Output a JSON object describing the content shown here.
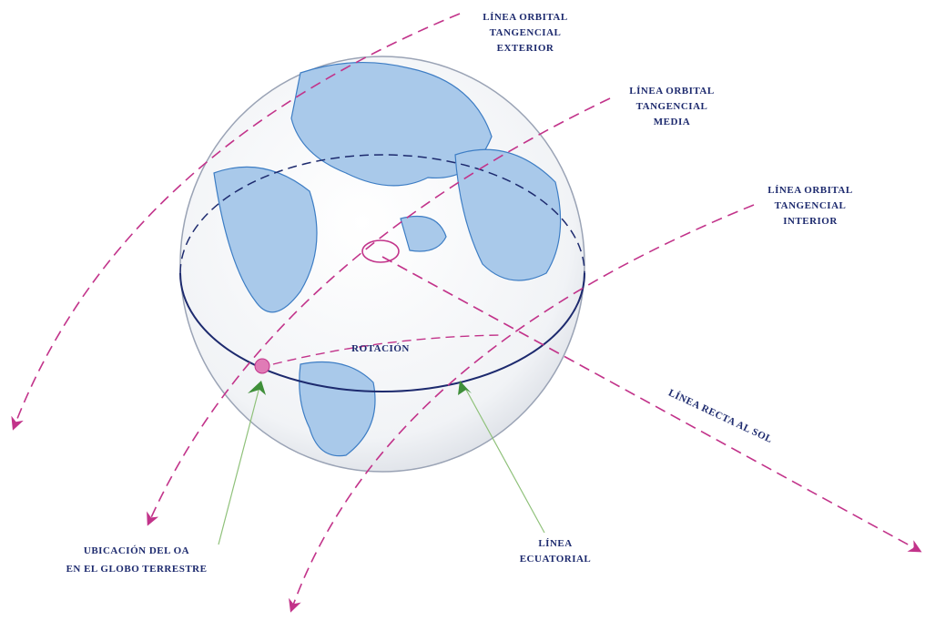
{
  "labels": {
    "exterior": [
      "LÍNEA ORBITAL",
      "TANGENCIAL",
      "EXTERIOR"
    ],
    "media": [
      "LÍNEA ORBITAL",
      "TANGENCIAL",
      "MEDIA"
    ],
    "interior": [
      "LÍNEA ORBITAL",
      "TANGENCIAL",
      "INTERIOR"
    ],
    "rotacion": "ROTACIÓN",
    "sol": "LÍNEA RECTA AL SOL",
    "ubicacion": [
      "UBICACIÓN DEL OA",
      "EN EL GLOBO TERRESTRE"
    ],
    "ecuatorial": [
      "LÍNEA",
      "ECUATORIAL"
    ]
  }
}
